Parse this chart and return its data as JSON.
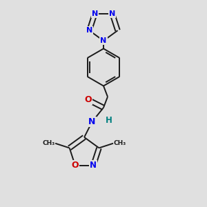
{
  "bg_color": "#e0e0e0",
  "bond_color": "#1a1a1a",
  "N_color": "#0000ee",
  "O_color": "#cc0000",
  "H_color": "#008080",
  "bond_width": 1.4,
  "figsize": [
    3.0,
    3.0
  ],
  "dpi": 100,
  "xlim": [
    0.1,
    0.9
  ],
  "ylim": [
    0.02,
    1.02
  ]
}
